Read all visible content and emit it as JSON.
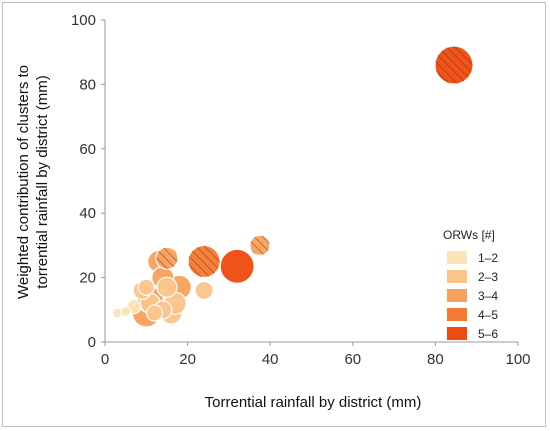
{
  "chart_data": {
    "type": "scatter",
    "xlabel": "Torrential rainfall by district (mm)",
    "ylabel": "Weighted contribution of clusters to torrential rainfall by district (mm)",
    "xlim": [
      0,
      100
    ],
    "ylim": [
      0,
      100
    ],
    "x_ticks": [
      "0",
      "20",
      "40",
      "60",
      "80",
      "100"
    ],
    "y_ticks": [
      "0",
      "20",
      "40",
      "60",
      "80",
      "100"
    ],
    "grid": false,
    "legend": {
      "title": "ORWs [#]",
      "placement": "right",
      "entries": [
        {
          "label": "1–2",
          "color": "#fde3b6"
        },
        {
          "label": "2–3",
          "color": "#fbc48a"
        },
        {
          "label": "3–4",
          "color": "#f7a15e"
        },
        {
          "label": "4–5",
          "color": "#f47932"
        },
        {
          "label": "5–6",
          "color": "#ee4a0e"
        }
      ]
    },
    "points": [
      {
        "x": 3,
        "y": 9,
        "size": 5,
        "category": "1–2"
      },
      {
        "x": 5,
        "y": 9.5,
        "size": 5,
        "category": "1–2"
      },
      {
        "x": 7,
        "y": 11,
        "size": 7,
        "category": "1–2"
      },
      {
        "x": 10,
        "y": 17,
        "size": 8,
        "category": "2–3"
      },
      {
        "x": 9,
        "y": 16,
        "size": 9,
        "category": "2–3"
      },
      {
        "x": 11,
        "y": 12,
        "size": 10,
        "category": "2–3"
      },
      {
        "x": 12,
        "y": 9,
        "size": 8,
        "category": "2–3"
      },
      {
        "x": 14,
        "y": 10,
        "size": 9,
        "category": "2–3"
      },
      {
        "x": 16,
        "y": 9,
        "size": 11,
        "category": "2–3"
      },
      {
        "x": 17,
        "y": 12,
        "size": 11,
        "category": "2–3"
      },
      {
        "x": 24,
        "y": 16,
        "size": 9,
        "category": "2–3"
      },
      {
        "x": 15,
        "y": 17,
        "size": 10,
        "category": "2–3"
      },
      {
        "x": 18,
        "y": 17,
        "size": 12,
        "category": "3–4"
      },
      {
        "x": 13,
        "y": 25,
        "size": 11,
        "category": "3–4"
      },
      {
        "x": 14,
        "y": 20,
        "size": 11,
        "category": "3–4"
      },
      {
        "x": 11,
        "y": 13,
        "size": 13,
        "category": "3–4"
      },
      {
        "x": 10,
        "y": 9,
        "size": 14,
        "category": "3–4"
      },
      {
        "x": 15,
        "y": 26,
        "size": 11,
        "category": "3–4",
        "hatched": true
      },
      {
        "x": 37.5,
        "y": 30,
        "size": 10,
        "category": "3–4",
        "hatched": true
      },
      {
        "x": 24,
        "y": 25,
        "size": 16,
        "category": "4–5",
        "hatched": true
      },
      {
        "x": 32,
        "y": 23.5,
        "size": 17,
        "category": "5–6"
      },
      {
        "x": 84.5,
        "y": 86,
        "size": 19,
        "category": "5–6",
        "hatched": true
      }
    ]
  }
}
